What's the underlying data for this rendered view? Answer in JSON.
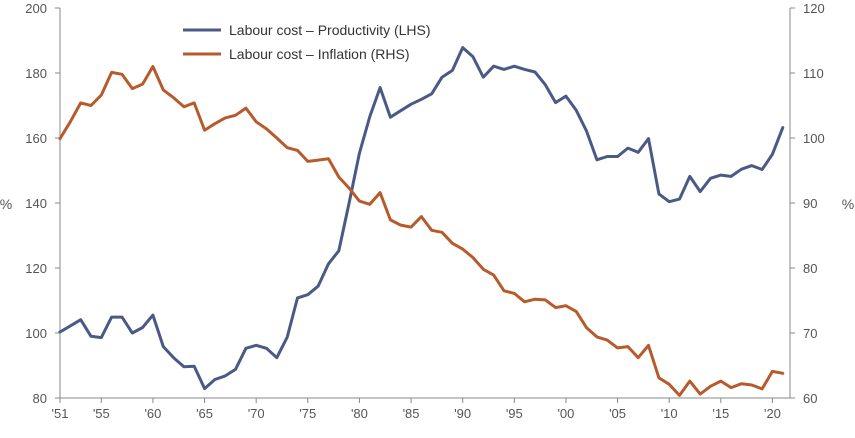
{
  "chart_data": {
    "type": "line",
    "title": "",
    "xlabel": "",
    "x": [
      1951,
      1952,
      1953,
      1954,
      1955,
      1956,
      1957,
      1958,
      1959,
      1960,
      1961,
      1962,
      1963,
      1964,
      1965,
      1966,
      1967,
      1968,
      1969,
      1970,
      1971,
      1972,
      1973,
      1974,
      1975,
      1976,
      1977,
      1978,
      1979,
      1980,
      1981,
      1982,
      1983,
      1984,
      1985,
      1986,
      1987,
      1988,
      1989,
      1990,
      1991,
      1992,
      1993,
      1994,
      1995,
      1996,
      1997,
      1998,
      1999,
      2000,
      2001,
      2002,
      2003,
      2004,
      2005,
      2006,
      2007,
      2008,
      2009,
      2010,
      2011,
      2012,
      2013,
      2014,
      2015,
      2016,
      2017,
      2018,
      2019,
      2020,
      2021
    ],
    "xlim": [
      1951,
      2021.7
    ],
    "x_ticks": [
      1951,
      1955,
      1960,
      1965,
      1970,
      1975,
      1980,
      1985,
      1990,
      1995,
      2000,
      2005,
      2010,
      2015,
      2020
    ],
    "x_tick_labels": [
      "'51",
      "'55",
      "'60",
      "'65",
      "'70",
      "'75",
      "'80",
      "'85",
      "'90",
      "'95",
      "'00",
      "'05",
      "'10",
      "'15",
      "'20"
    ],
    "y_left": {
      "label": "%",
      "range": [
        80,
        200
      ],
      "ticks": [
        80,
        100,
        120,
        140,
        160,
        180,
        200
      ],
      "tick_labels": [
        "80",
        "100",
        "120",
        "140",
        "160",
        "180",
        "200"
      ]
    },
    "y_right": {
      "label": "%",
      "range": [
        60,
        120
      ],
      "ticks": [
        60,
        70,
        80,
        90,
        100,
        110,
        120
      ],
      "tick_labels": [
        "60",
        "70",
        "80",
        "90",
        "100",
        "110",
        "120"
      ]
    },
    "legend_position": "top-center",
    "series": [
      {
        "name": "Labour cost – Productivity (LHS)",
        "axis": "left",
        "color": "#4A5A85",
        "values": [
          100.3,
          102.2,
          104.1,
          99.0,
          98.6,
          104.9,
          104.9,
          100.0,
          101.7,
          105.5,
          95.8,
          92.4,
          89.6,
          89.8,
          82.9,
          85.7,
          86.8,
          88.8,
          95.3,
          96.2,
          95.3,
          92.4,
          98.7,
          110.8,
          111.8,
          114.4,
          121.3,
          125.3,
          140.0,
          155.3,
          166.6,
          175.5,
          166.4,
          168.4,
          170.4,
          171.9,
          173.6,
          178.7,
          180.8,
          187.8,
          185.0,
          178.7,
          182.1,
          181.1,
          182.1,
          181.1,
          180.3,
          176.4,
          170.9,
          172.9,
          168.5,
          162.1,
          153.3,
          154.3,
          154.3,
          156.9,
          155.6,
          159.8,
          142.8,
          140.4,
          141.2,
          148.2,
          143.5,
          147.6,
          148.6,
          148.2,
          150.4,
          151.5,
          150.3,
          155.0,
          163.2
        ]
      },
      {
        "name": "Labour cost – Inflation (RHS)",
        "axis": "right",
        "color": "#B85B2C",
        "values": [
          99.9,
          102.5,
          105.4,
          105.0,
          106.6,
          110.1,
          109.8,
          107.6,
          108.3,
          111.0,
          107.4,
          106.2,
          104.8,
          105.4,
          101.2,
          102.2,
          103.1,
          103.5,
          104.6,
          102.5,
          101.4,
          100.0,
          98.5,
          98.1,
          96.4,
          96.6,
          96.8,
          94.0,
          92.3,
          90.3,
          89.8,
          91.6,
          87.4,
          86.6,
          86.3,
          87.9,
          85.8,
          85.5,
          83.8,
          82.9,
          81.6,
          79.8,
          78.9,
          76.5,
          76.1,
          74.8,
          75.2,
          75.1,
          73.9,
          74.2,
          73.3,
          70.8,
          69.4,
          68.9,
          67.7,
          67.9,
          66.2,
          68.1,
          63.1,
          62.1,
          60.4,
          62.6,
          60.6,
          61.8,
          62.6,
          61.6,
          62.2,
          62.0,
          61.4,
          64.1,
          63.8
        ]
      }
    ]
  }
}
